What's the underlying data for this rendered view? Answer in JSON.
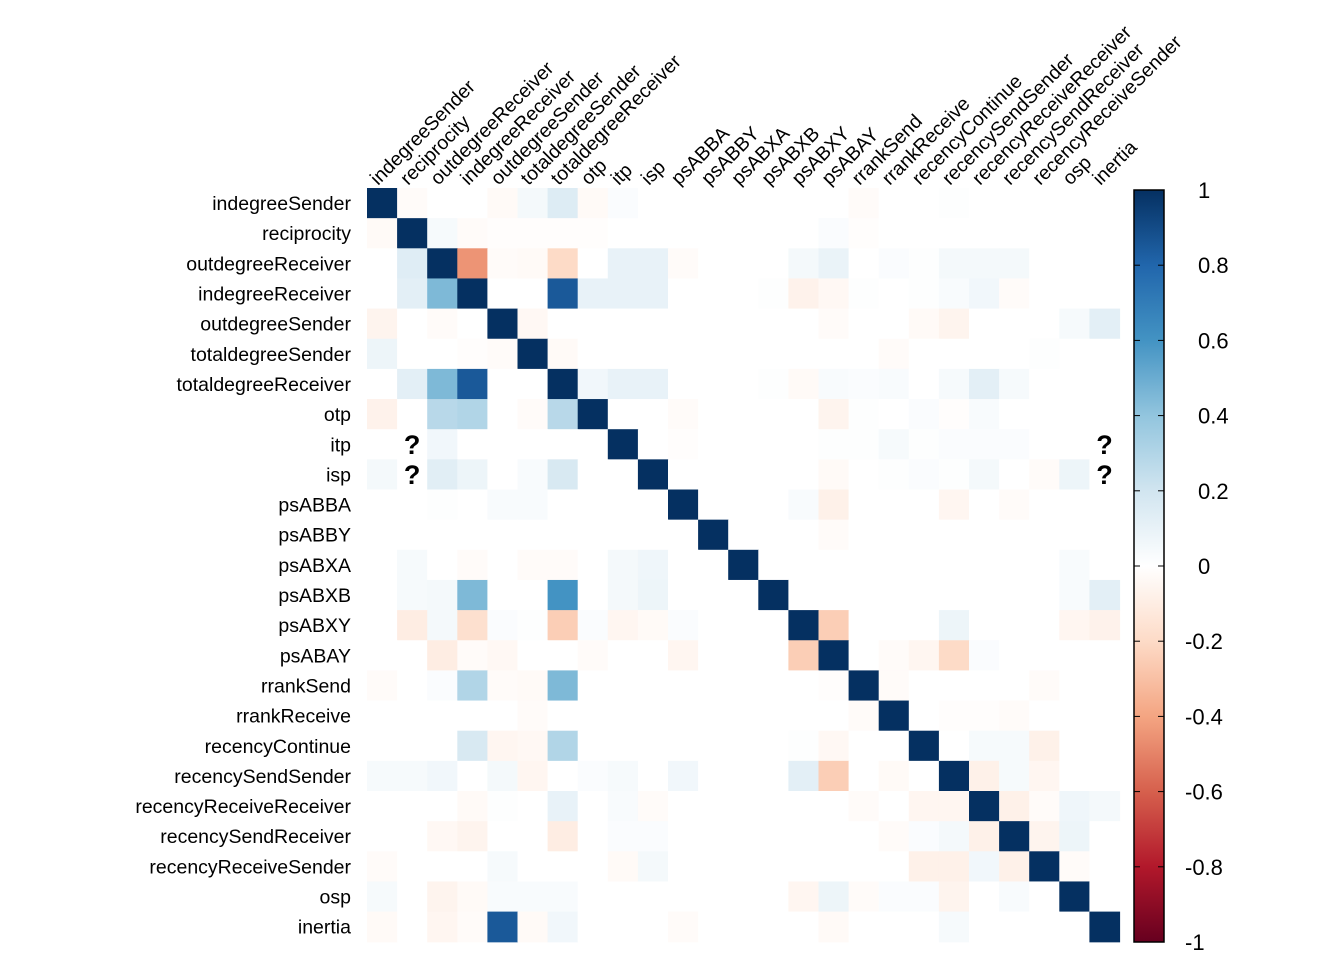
{
  "chart_data": {
    "type": "heatmap",
    "variables": [
      "indegreeSender",
      "reciprocity",
      "outdegreeReceiver",
      "indegreeReceiver",
      "outdegreeSender",
      "totaldegreeSender",
      "totaldegreeReceiver",
      "otp",
      "itp",
      "isp",
      "psABBA",
      "psABBY",
      "psABXA",
      "psABXB",
      "psABXY",
      "psABAY",
      "rrankSend",
      "rrankReceive",
      "recencyContinue",
      "recencySendSender",
      "recencyReceiveReceiver",
      "recencySendReceiver",
      "recencyReceiveSender",
      "osp",
      "inertia"
    ],
    "color_scale": {
      "min": -1,
      "max": 1,
      "ticks": [
        "1",
        "0.8",
        "0.6",
        "0.4",
        "0.2",
        "0",
        "-0.2",
        "-0.4",
        "-0.6",
        "-0.8",
        "-1"
      ],
      "colors": [
        "#67001F",
        "#B2182B",
        "#D6604D",
        "#F4A582",
        "#FDDBC7",
        "#FFFFFF",
        "#D1E5F0",
        "#92C5DE",
        "#4393C3",
        "#2166AC",
        "#053061"
      ]
    },
    "unknown_marker": "?",
    "unknown_cells": [
      [
        8,
        1
      ],
      [
        9,
        1
      ],
      [
        8,
        24
      ],
      [
        9,
        24
      ]
    ],
    "matrix": [
      [
        1,
        -0.02,
        0,
        0,
        -0.03,
        0.05,
        0.15,
        -0.03,
        0.02,
        0,
        0,
        0,
        0,
        0,
        0,
        0,
        -0.02,
        0,
        0,
        0.01,
        0,
        0,
        0,
        0,
        0
      ],
      [
        -0.03,
        1,
        0.04,
        -0.02,
        -0.01,
        -0.01,
        -0.01,
        -0.01,
        0,
        0,
        0,
        0,
        0,
        0,
        0,
        0.02,
        -0.01,
        0,
        0,
        0,
        0,
        0,
        0,
        0,
        0
      ],
      [
        0,
        0.14,
        1,
        -0.45,
        -0.02,
        -0.03,
        -0.2,
        0,
        0.1,
        0.1,
        -0.02,
        0,
        0,
        0,
        0.05,
        0.09,
        0,
        0.02,
        0.01,
        0.05,
        0.05,
        0.05,
        0,
        0,
        0
      ],
      [
        0,
        0.12,
        0.45,
        1,
        0,
        0,
        0.85,
        0.1,
        0.1,
        0.1,
        0,
        0,
        0,
        0.01,
        -0.07,
        -0.04,
        0.01,
        0,
        0.01,
        0.03,
        0.06,
        -0.02,
        0,
        0,
        0
      ],
      [
        -0.06,
        0,
        -0.02,
        0,
        1,
        -0.04,
        0,
        0,
        0,
        0,
        0,
        0,
        0,
        0,
        0,
        -0.02,
        0,
        0,
        -0.03,
        -0.06,
        0,
        0,
        0,
        0.04,
        0.12
      ],
      [
        0.08,
        0,
        0,
        -0.01,
        -0.02,
        1,
        -0.03,
        0,
        0,
        0,
        0,
        0,
        0,
        0,
        0,
        0,
        0,
        -0.02,
        0,
        0,
        0,
        0,
        0.01,
        0,
        0
      ],
      [
        0,
        0.12,
        0.45,
        0.85,
        0,
        0,
        1,
        0.06,
        0.1,
        0.1,
        0,
        0,
        0,
        0.01,
        -0.03,
        0.03,
        0.02,
        0.03,
        0,
        0.04,
        0.12,
        0.04,
        0,
        0,
        0
      ],
      [
        -0.07,
        0,
        0.28,
        0.3,
        0,
        -0.02,
        0.28,
        1,
        0,
        0,
        -0.02,
        0,
        0,
        0,
        0,
        -0.06,
        0.01,
        0,
        0.02,
        -0.01,
        0.03,
        0,
        0,
        0,
        0
      ],
      [
        0,
        0,
        0.06,
        0,
        0,
        0,
        0,
        0,
        1,
        0,
        -0.01,
        0,
        0,
        0,
        0,
        0.01,
        0.01,
        0.04,
        0.01,
        0.02,
        0.02,
        0.02,
        0,
        0,
        0
      ],
      [
        0.05,
        0,
        0.13,
        0.08,
        0,
        0.03,
        0.17,
        0,
        0,
        1,
        0,
        0,
        0,
        0,
        0,
        -0.03,
        0,
        0.01,
        0.02,
        0.01,
        0.05,
        0,
        -0.02,
        0.08,
        0
      ],
      [
        0,
        0,
        0.01,
        0,
        0.03,
        0.03,
        0,
        0,
        0,
        0,
        1,
        0,
        0,
        0,
        0.03,
        -0.08,
        0,
        0,
        0,
        -0.05,
        0,
        -0.02,
        0,
        0,
        0
      ],
      [
        0,
        0,
        0,
        0,
        0,
        0,
        0,
        0,
        0,
        0,
        0,
        1,
        0,
        0,
        0,
        -0.02,
        0,
        0,
        0,
        0,
        0,
        0,
        0,
        0,
        0
      ],
      [
        0,
        0.04,
        0,
        -0.02,
        0,
        -0.02,
        -0.02,
        0,
        0.05,
        0.07,
        0,
        0,
        1,
        0,
        0,
        0,
        0,
        0,
        0,
        0,
        0,
        0,
        0,
        0.03,
        0
      ],
      [
        0,
        0.04,
        0.05,
        0.45,
        0,
        0,
        0.6,
        0,
        0.05,
        0.08,
        0,
        0,
        0,
        1,
        0,
        0,
        0,
        0,
        0,
        0,
        0,
        0,
        0,
        0.03,
        0.12
      ],
      [
        0,
        -0.1,
        0.05,
        -0.17,
        0.02,
        0.01,
        -0.25,
        0.02,
        -0.05,
        -0.03,
        0.02,
        0,
        0,
        0,
        1,
        -0.25,
        0,
        0,
        0,
        0.08,
        0,
        0,
        0,
        -0.05,
        -0.07
      ],
      [
        0,
        0,
        -0.1,
        -0.02,
        -0.04,
        0,
        0,
        -0.02,
        0,
        0,
        -0.05,
        0,
        0,
        0,
        -0.25,
        1,
        0,
        -0.02,
        -0.05,
        -0.2,
        0.02,
        0,
        0,
        0,
        0
      ],
      [
        -0.02,
        0,
        0.02,
        0.3,
        -0.02,
        -0.03,
        0.45,
        0,
        0,
        0,
        0,
        0,
        0,
        0,
        0,
        -0.01,
        1,
        -0.02,
        0,
        0,
        0,
        0,
        -0.02,
        0,
        0
      ],
      [
        0,
        0,
        0,
        0,
        0,
        -0.02,
        0,
        0,
        0,
        0,
        0,
        0,
        0,
        0,
        0,
        0,
        -0.02,
        1,
        0,
        -0.01,
        -0.01,
        -0.02,
        0,
        0,
        0
      ],
      [
        0,
        0,
        0,
        0.17,
        -0.05,
        -0.04,
        0.3,
        0,
        0,
        0,
        0,
        0,
        0,
        0,
        0.01,
        -0.04,
        0,
        0,
        1,
        0,
        0.04,
        0.04,
        -0.08,
        0,
        0
      ],
      [
        0.04,
        0.04,
        0.06,
        0,
        0.05,
        -0.05,
        0,
        0.02,
        0.04,
        0,
        0.06,
        0,
        0,
        0,
        0.12,
        -0.25,
        0,
        -0.03,
        0,
        1,
        -0.08,
        0.04,
        -0.05,
        0,
        0
      ],
      [
        0,
        0,
        0,
        -0.03,
        0.01,
        0,
        0.1,
        0,
        0.03,
        -0.02,
        0,
        0,
        0,
        0,
        0,
        0,
        -0.02,
        0,
        -0.05,
        -0.05,
        1,
        -0.08,
        -0.02,
        0.07,
        0.05
      ],
      [
        0,
        0,
        -0.04,
        -0.06,
        0,
        0,
        -0.1,
        0,
        0.02,
        0.02,
        0,
        0,
        0,
        0,
        0,
        0,
        0,
        -0.02,
        0.02,
        0.05,
        -0.08,
        1,
        -0.06,
        0.08,
        0
      ],
      [
        -0.02,
        0,
        0,
        0,
        0.04,
        0,
        0,
        0,
        -0.03,
        0.05,
        0,
        0,
        0,
        0,
        0,
        0,
        0,
        0,
        -0.08,
        -0.08,
        0.06,
        -0.08,
        1,
        -0.02,
        0
      ],
      [
        0.04,
        0,
        -0.06,
        -0.03,
        0.03,
        0.03,
        0.03,
        0,
        0,
        0,
        0,
        0,
        0,
        0,
        -0.05,
        0.08,
        -0.02,
        0.02,
        0.02,
        -0.06,
        0,
        0.03,
        0,
        1,
        0
      ],
      [
        -0.03,
        0,
        -0.05,
        -0.02,
        0.85,
        -0.03,
        0.06,
        0,
        0,
        0,
        -0.02,
        0,
        0,
        0,
        0,
        -0.03,
        0,
        0,
        0,
        0.04,
        0,
        0,
        0,
        0,
        1
      ]
    ]
  }
}
